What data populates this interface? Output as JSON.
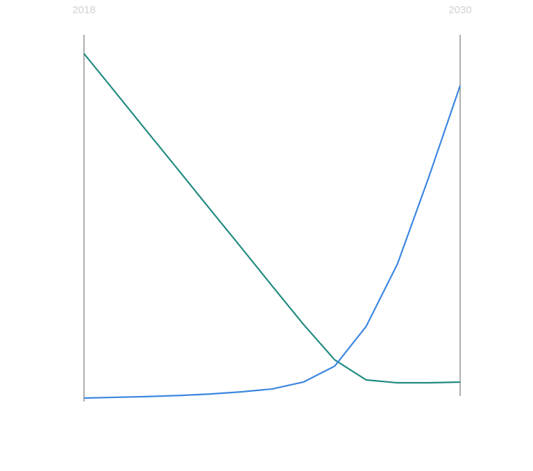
{
  "chart_data": {
    "type": "line",
    "x": [
      2018,
      2019,
      2020,
      2021,
      2022,
      2023,
      2024,
      2025,
      2026,
      2027,
      2028,
      2029,
      2030
    ],
    "xlim": [
      2018,
      2030
    ],
    "xticks": [
      2018,
      2030
    ],
    "ylim": [
      0,
      100
    ],
    "series": [
      {
        "color": "#1f8a80",
        "values": [
          94.8,
          84.2,
          73.5,
          62.9,
          52.2,
          41.6,
          30.9,
          20.3,
          10.5,
          5.0,
          4.2,
          4.2,
          4.4
        ]
      },
      {
        "color": "#3b86e0",
        "values": [
          0,
          0.2,
          0.4,
          0.7,
          1.1,
          1.7,
          2.5,
          4.4,
          8.8,
          19.7,
          36.9,
          60.8,
          86.0
        ]
      }
    ]
  }
}
